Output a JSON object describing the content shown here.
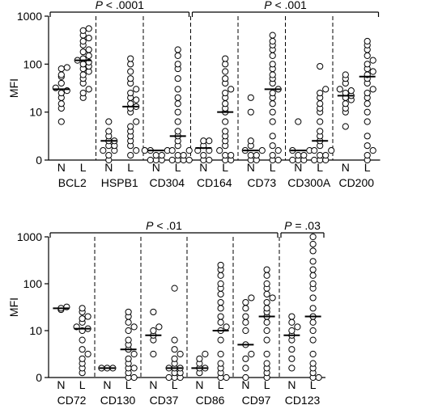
{
  "chart_data": [
    {
      "type": "scatter",
      "ylabel": "MFI",
      "yscale": "log",
      "yticks": [
        "0",
        "10",
        "100",
        "1000"
      ],
      "group_labels": [
        "N",
        "L"
      ],
      "brackets": [
        {
          "label": "P < .0001",
          "p_prefix": "P",
          "p_suffix": " < .0001",
          "from": 0,
          "to": 2
        },
        {
          "label": "P < .001",
          "p_prefix": "P",
          "p_suffix": " < .001",
          "from": 3,
          "to": 6
        }
      ],
      "markers": [
        {
          "name": "BCL2",
          "N": {
            "median": 30,
            "values": [
              8,
              12,
              15,
              20,
              25,
              28,
              32,
              40,
              55,
              60,
              80,
              85
            ]
          },
          "L": {
            "median": 120,
            "values": [
              20,
              25,
              30,
              40,
              50,
              60,
              70,
              80,
              90,
              100,
              110,
              120,
              130,
              150,
              180,
              200,
              250,
              300,
              350,
              400,
              500,
              550
            ]
          }
        },
        {
          "name": "HSPB1",
          "N": {
            "median": 4,
            "values": [
              0,
              1,
              2,
              2,
              3,
              3,
              4,
              4,
              5,
              6,
              8
            ]
          },
          "L": {
            "median": 13,
            "values": [
              1,
              2,
              3,
              4,
              5,
              6,
              7,
              8,
              10,
              12,
              13,
              15,
              18,
              20,
              25,
              30,
              40,
              50,
              70,
              100,
              130
            ]
          }
        },
        {
          "name": "CD304",
          "N": {
            "median": 2,
            "values": [
              0,
              0,
              0,
              1,
              1,
              2,
              2,
              2
            ]
          },
          "L": {
            "median": 5,
            "values": [
              0,
              0,
              0,
              0,
              1,
              1,
              2,
              2,
              3,
              4,
              5,
              6,
              8,
              10,
              15,
              20,
              30,
              50,
              80,
              100,
              150,
              200
            ]
          }
        },
        {
          "name": "CD164",
          "N": {
            "median": 2.5,
            "values": [
              0,
              0,
              1,
              2,
              2,
              3,
              4,
              4
            ]
          },
          "L": {
            "median": 10,
            "values": [
              0,
              0,
              1,
              1,
              2,
              3,
              4,
              5,
              6,
              8,
              10,
              12,
              15,
              20,
              25,
              30,
              40,
              50,
              70,
              100,
              130
            ]
          }
        },
        {
          "name": "CD73",
          "N": {
            "median": 2,
            "values": [
              0,
              0,
              1,
              1,
              2,
              2,
              3,
              4,
              10,
              20
            ]
          },
          "L": {
            "median": 30,
            "values": [
              0,
              0,
              1,
              2,
              3,
              5,
              8,
              10,
              15,
              20,
              25,
              30,
              40,
              50,
              60,
              80,
              100,
              150,
              200,
              250,
              300,
              400
            ]
          }
        },
        {
          "name": "CD300A",
          "N": {
            "median": 2,
            "values": [
              0,
              0,
              0,
              1,
              1,
              2,
              2,
              8
            ]
          },
          "L": {
            "median": 4,
            "values": [
              0,
              0,
              0,
              1,
              1,
              2,
              2,
              3,
              4,
              5,
              6,
              8,
              10,
              12,
              15,
              20,
              25,
              30,
              90
            ]
          }
        },
        {
          "name": "CD200",
          "N": {
            "median": 22,
            "values": [
              7,
              10,
              12,
              15,
              18,
              20,
              22,
              25,
              28,
              30,
              40,
              50,
              60
            ]
          },
          "L": {
            "median": 55,
            "values": [
              0,
              1,
              2,
              3,
              5,
              8,
              10,
              15,
              20,
              25,
              30,
              40,
              50,
              60,
              70,
              80,
              100,
              120,
              150,
              200,
              250,
              300
            ]
          }
        }
      ]
    },
    {
      "type": "scatter",
      "ylabel": "MFI",
      "yscale": "log",
      "yticks": [
        "0",
        "10",
        "100",
        "1000"
      ],
      "group_labels": [
        "N",
        "L"
      ],
      "brackets": [
        {
          "label": "P < .01",
          "p_prefix": "P",
          "p_suffix": " < .01",
          "from": 0,
          "to": 4
        },
        {
          "label": "P = .03",
          "p_prefix": "P",
          "p_suffix": " = .03",
          "from": 5,
          "to": 5
        }
      ],
      "markers": [
        {
          "name": "CD72",
          "N": {
            "median": 30,
            "values": [
              28,
              30,
              32
            ]
          },
          "L": {
            "median": 11,
            "values": [
              1,
              2,
              3,
              4,
              5,
              6,
              8,
              10,
              11,
              12,
              15,
              18,
              20,
              25,
              30
            ]
          }
        },
        {
          "name": "CD130",
          "N": {
            "median": 2,
            "values": [
              2,
              2,
              2
            ]
          },
          "L": {
            "median": 6,
            "values": [
              0,
              0,
              1,
              2,
              2,
              3,
              4,
              5,
              6,
              7,
              8,
              10,
              12,
              15,
              20,
              25
            ]
          }
        },
        {
          "name": "CD37",
          "N": {
            "median": 9,
            "values": [
              5,
              8,
              9,
              10,
              12,
              25
            ]
          },
          "L": {
            "median": 2,
            "values": [
              0,
              0,
              0,
              1,
              1,
              2,
              2,
              2,
              3,
              4,
              5,
              6,
              8,
              80
            ]
          }
        },
        {
          "name": "CD86",
          "N": {
            "median": 2,
            "values": [
              1,
              2,
              2,
              3,
              4,
              5
            ]
          },
          "L": {
            "median": 10,
            "values": [
              0,
              0,
              1,
              2,
              3,
              5,
              8,
              10,
              12,
              15,
              20,
              30,
              40,
              60,
              80,
              100,
              150,
              200,
              250
            ]
          }
        },
        {
          "name": "CD97",
          "N": {
            "median": 7,
            "values": [
              0,
              2,
              4,
              5,
              7,
              10,
              15,
              20,
              30,
              40,
              50
            ]
          },
          "L": {
            "median": 20,
            "values": [
              0,
              1,
              2,
              3,
              5,
              8,
              10,
              15,
              20,
              25,
              30,
              40,
              50,
              60,
              80,
              100,
              150,
              200
            ]
          }
        },
        {
          "name": "CD123",
          "N": {
            "median": 9,
            "values": [
              2,
              4,
              6,
              8,
              9,
              10,
              12,
              15,
              20
            ]
          },
          "L": {
            "median": 20,
            "values": [
              0,
              0,
              1,
              2,
              3,
              5,
              8,
              10,
              15,
              20,
              30,
              50,
              80,
              100,
              150,
              200,
              300,
              500,
              700,
              1000
            ]
          }
        }
      ]
    }
  ]
}
